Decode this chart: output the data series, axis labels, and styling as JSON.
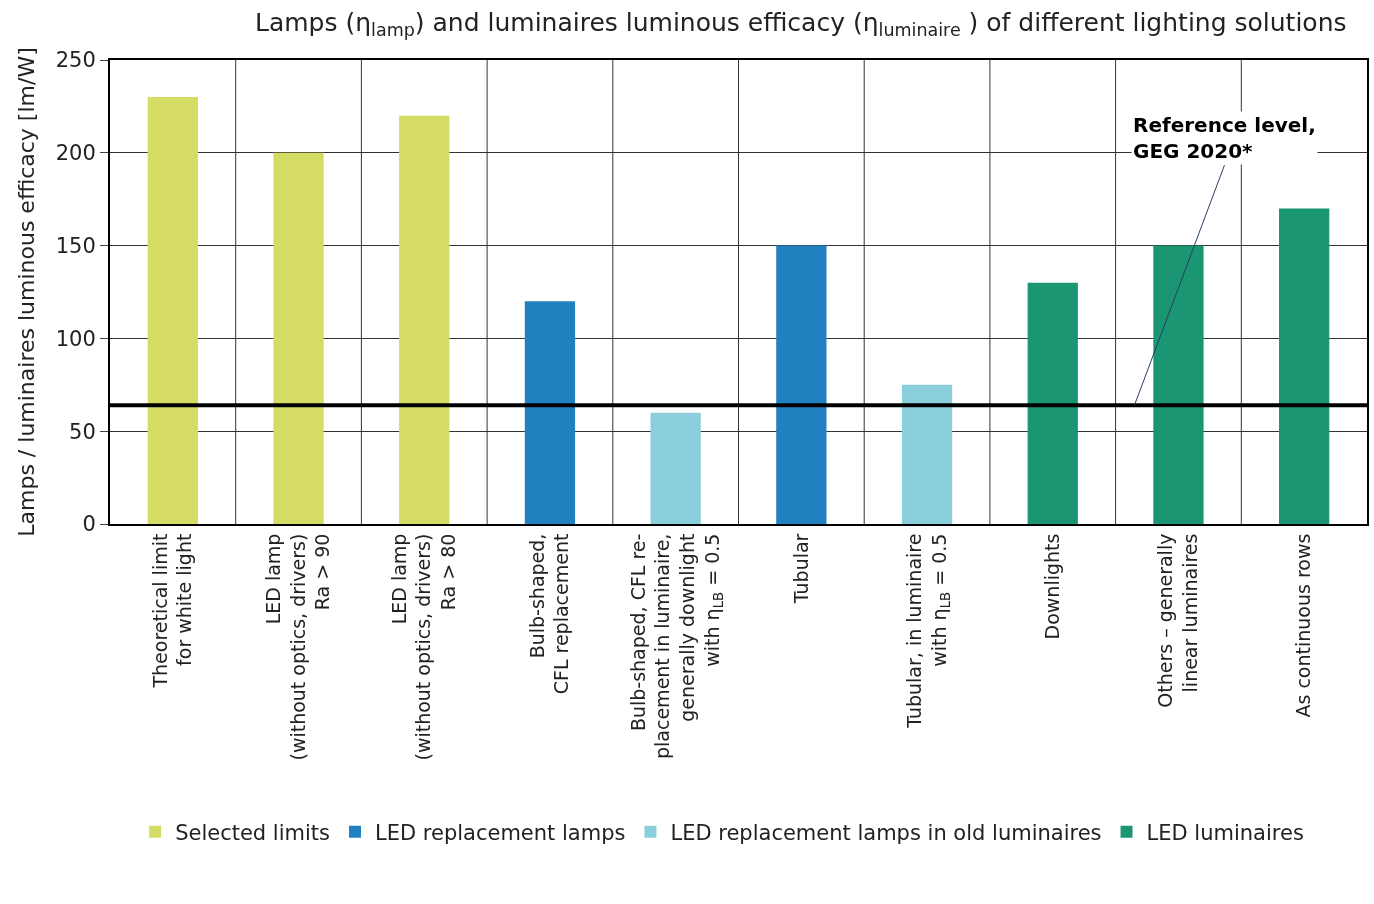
{
  "chart_data": {
    "type": "bar",
    "title": "Lamps (η$_{lamp}$) and luminaires luminous efficacy (η$_{luminaire}$ ) of different lighting solutions",
    "ylabel": "Lamps / luminaires luminous efficacy [lm/W]",
    "categories": [
      "Theoretical limit\nfor white light",
      "LED lamp\n(without optics, drivers)\nRa > 90",
      "LED lamp\n(without optics, drivers)\nRa > 80",
      "Bulb-shaped,\nCFL replacement",
      "Bulb-shaped, CFL re-\nplacement in luminaire,\ngenerally downlight\nwith η$_{LB}$ = 0.5",
      "Tubular",
      "Tubular, in luminaire\nwith η$_{LB}$ = 0.5",
      "Downlights",
      "Others – generally\nlinear luminaires",
      "As continuous rows"
    ],
    "series": [
      {
        "name": "Selected limits",
        "color": "#d4dc64",
        "values": [
          230,
          200,
          220,
          null,
          null,
          null,
          null,
          null,
          null,
          null
        ]
      },
      {
        "name": "LED replacement lamps",
        "color": "#2181c0",
        "values": [
          null,
          null,
          null,
          120,
          null,
          150,
          null,
          null,
          null,
          null
        ]
      },
      {
        "name": "LED replacement lamps in old luminaires",
        "color": "#8ccfdc",
        "values": [
          null,
          null,
          null,
          null,
          60,
          null,
          75,
          null,
          null,
          null
        ]
      },
      {
        "name": "LED luminaires",
        "color": "#1a9673",
        "values": [
          null,
          null,
          null,
          null,
          null,
          null,
          null,
          130,
          150,
          170
        ]
      }
    ],
    "ylim": [
      0,
      250
    ],
    "yticks": [
      0,
      50,
      100,
      150,
      200,
      250
    ],
    "ref_lines": [
      {
        "axis": "y",
        "value": 64,
        "label": "Reference level,\nGEG 2020*",
        "color": "#000000"
      }
    ],
    "grid": true,
    "legend": "bottom"
  }
}
